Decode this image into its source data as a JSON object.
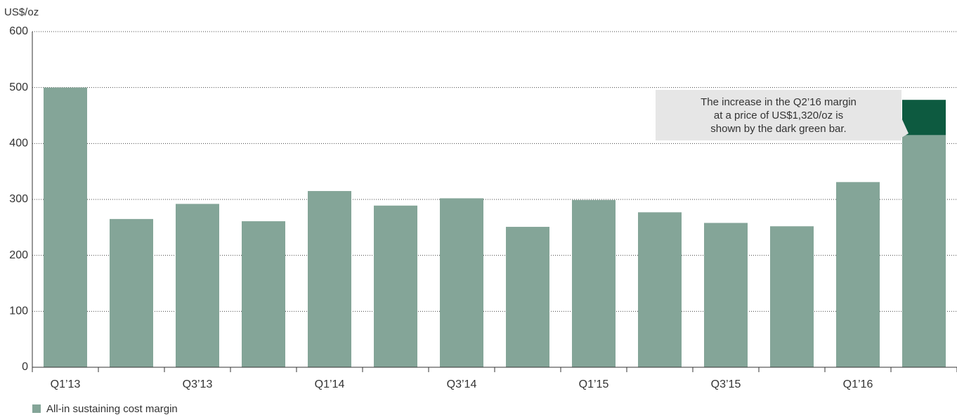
{
  "chart_data": {
    "type": "stacked_bar",
    "y_label": "US$/oz",
    "categories": [
      "Q1’13",
      null,
      "Q3’13",
      null,
      "Q1’14",
      null,
      "Q3’14",
      null,
      "Q1’15",
      null,
      "Q3’15",
      null,
      "Q1’16",
      null
    ],
    "series": [
      {
        "name": "All-in sustaining cost margin",
        "color": "#84a598",
        "values": [
          500,
          265,
          292,
          261,
          315,
          289,
          302,
          251,
          299,
          277,
          258,
          252,
          331,
          415
        ]
      },
      {
        "color": "#0d5a40",
        "values": [
          null,
          null,
          null,
          null,
          null,
          null,
          null,
          null,
          null,
          null,
          null,
          null,
          null,
          63
        ]
      }
    ],
    "annotation": [
      "The increase in the Q2’16  margin",
      "at a price of US$1,320/oz is",
      "shown by the dark green bar."
    ],
    "ylim": [
      0,
      600
    ],
    "yticks": [
      0,
      100,
      200,
      300,
      400,
      500,
      600
    ],
    "grid": true,
    "legend": "bottom-left"
  }
}
